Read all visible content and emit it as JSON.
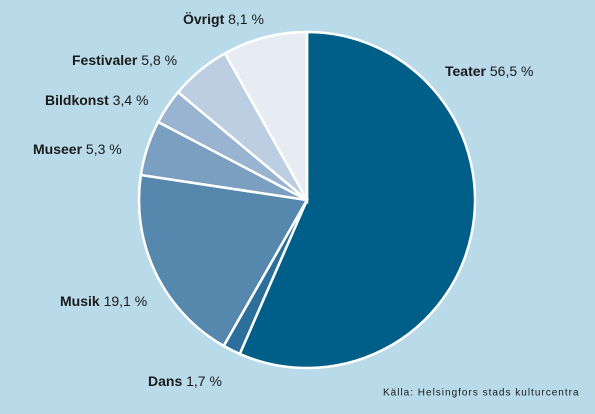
{
  "chart_data": {
    "type": "pie",
    "categories": [
      "Teater",
      "Dans",
      "Musik",
      "Museer",
      "Bildkonst",
      "Festivaler",
      "Övrigt"
    ],
    "values": [
      56.5,
      1.7,
      19.1,
      5.3,
      3.4,
      5.8,
      8.1
    ],
    "value_labels": [
      "56,5 %",
      "1,7 %",
      "19,1 %",
      "5,3 %",
      "3,4 %",
      "5,8 %",
      "8,1 %"
    ],
    "colors": [
      "#005f89",
      "#2c6f9a",
      "#5687ac",
      "#7b9fc0",
      "#98b4d0",
      "#bccee1",
      "#e7ecf4"
    ],
    "source": "Källa: Helsingfors stads kulturcentra"
  }
}
